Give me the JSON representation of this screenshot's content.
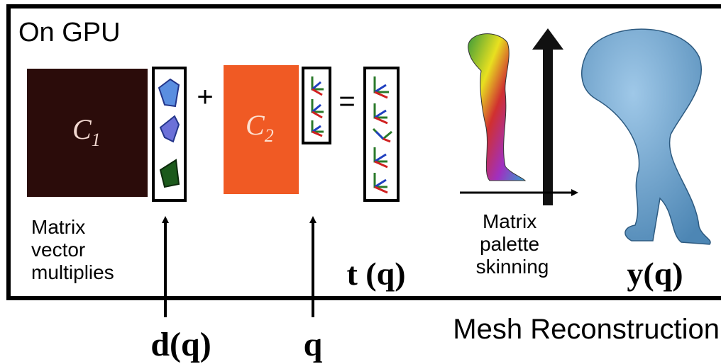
{
  "panel": {
    "title": "On GPU"
  },
  "matrices": [
    {
      "letter": "C",
      "subscript": "1"
    },
    {
      "letter": "C",
      "subscript": "2"
    }
  ],
  "operators": {
    "plus": "+",
    "equals": "="
  },
  "labels": {
    "matrix_vector": [
      "Matrix",
      "vector",
      "multiplies"
    ],
    "t_q": "t (q)",
    "palette": [
      "Matrix",
      "palette",
      "skinning"
    ],
    "y_q": "y(q)",
    "d_q": "d(q)",
    "q": "q",
    "mesh": "Mesh Reconstruction"
  }
}
